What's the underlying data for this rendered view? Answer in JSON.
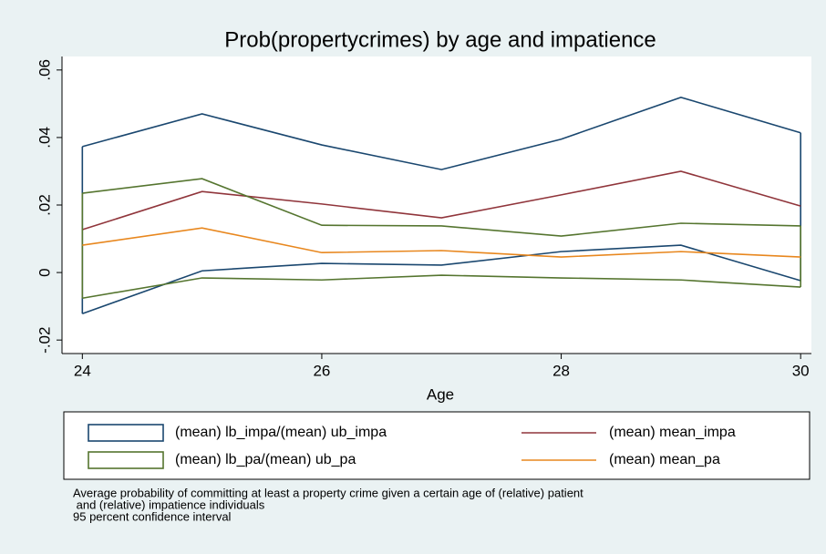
{
  "chart_data": {
    "type": "line",
    "title": "Prob(propertycrimes) by age and impatience",
    "x_label": "Age",
    "x": [
      24,
      25,
      26,
      27,
      28,
      29,
      30
    ],
    "xlim": [
      23.83,
      30.09
    ],
    "xticks": [
      24,
      26,
      28,
      30
    ],
    "ylim": [
      -0.024,
      0.064
    ],
    "yticks": [
      {
        "value": 0.06,
        "label": ".06"
      },
      {
        "value": 0.04,
        "label": ".04"
      },
      {
        "value": 0.02,
        "label": ".02"
      },
      0,
      {
        "value": -0.02,
        "label": "-.02"
      }
    ],
    "series": [
      {
        "name": "(mean) lb_impa/(mean) ub_impa",
        "color": "#1a476f",
        "lower": [
          -0.0122,
          0.0005,
          0.0027,
          0.0022,
          0.0062,
          0.0081,
          -0.0024
        ],
        "upper": [
          0.0373,
          0.047,
          0.0378,
          0.0305,
          0.0395,
          0.0519,
          0.0414
        ]
      },
      {
        "name": "(mean) mean_impa",
        "color": "#90353b",
        "values": [
          0.0127,
          0.024,
          0.0203,
          0.0162,
          0.023,
          0.03,
          0.0197
        ]
      },
      {
        "name": "(mean) lb_pa/(mean) ub_pa",
        "color": "#55752f",
        "lower": [
          -0.0076,
          -0.0016,
          -0.0022,
          -0.0008,
          -0.0016,
          -0.0022,
          -0.0043
        ],
        "upper": [
          0.0235,
          0.0278,
          0.014,
          0.0138,
          0.0108,
          0.0146,
          0.0138
        ]
      },
      {
        "name": "(mean) mean_pa",
        "color": "#e8871e",
        "values": [
          0.0081,
          0.0132,
          0.0059,
          0.0065,
          0.0046,
          0.0062,
          0.0046
        ]
      }
    ],
    "notes": [
      "Average probability of committing at least a property crime given a certain age of (relative) patient",
      " and (relative) impatience individuals",
      "95 percent confidence interval"
    ]
  }
}
